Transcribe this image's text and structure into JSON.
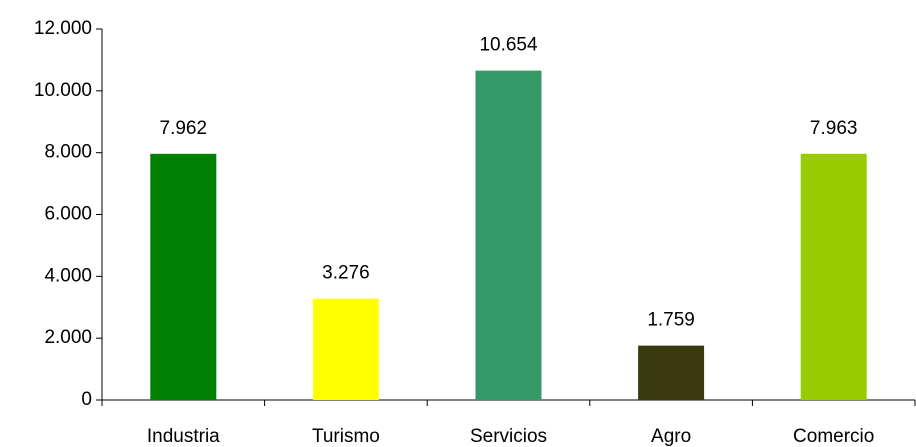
{
  "chart_data": {
    "type": "bar",
    "categories": [
      "Industria",
      "Turismo",
      "Servicios",
      "Agro",
      "Comercio"
    ],
    "values": [
      7962,
      3276,
      10654,
      1759,
      7963
    ],
    "value_labels": [
      "7.962",
      "3.276",
      "10.654",
      "1.759",
      "7.963"
    ],
    "colors": [
      "#008000",
      "#ffff00",
      "#339966",
      "#3a3a12",
      "#99cc00"
    ],
    "ylim": [
      0,
      12000
    ],
    "yticks": [
      0,
      {
        "value": 2000,
        "label": "2.000"
      },
      {
        "value": 4000,
        "label": "4.000"
      },
      {
        "value": 6000,
        "label": "6.000"
      },
      {
        "value": 8000,
        "label": "8.000"
      },
      {
        "value": 10000,
        "label": "10.000"
      },
      {
        "value": 12000,
        "label": "12.000"
      }
    ],
    "grid": false
  }
}
